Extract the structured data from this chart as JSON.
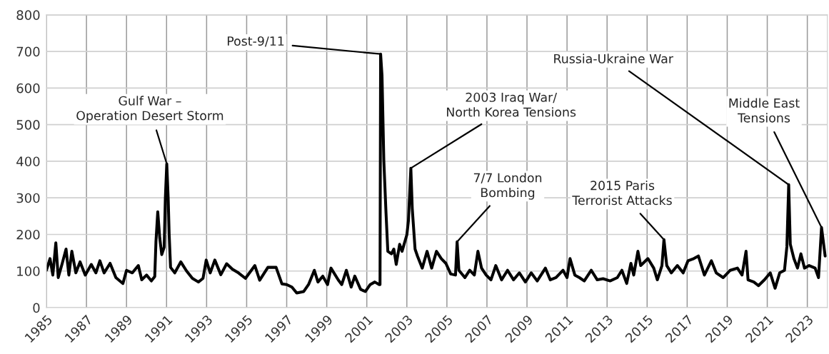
{
  "chart_data": {
    "type": "line",
    "x": [
      1985.0,
      1985.18,
      1985.32,
      1985.47,
      1985.59,
      1985.79,
      1985.98,
      1986.12,
      1986.27,
      1986.47,
      1986.68,
      1986.94,
      1987.24,
      1987.47,
      1987.67,
      1987.88,
      1988.18,
      1988.47,
      1988.82,
      1989.0,
      1989.29,
      1989.59,
      1989.76,
      1990.0,
      1990.24,
      1990.41,
      1990.47,
      1990.56,
      1990.66,
      1990.76,
      1990.88,
      1990.94,
      1991.01,
      1991.08,
      1991.13,
      1991.2,
      1991.41,
      1991.71,
      1992.0,
      1992.29,
      1992.59,
      1992.82,
      1992.98,
      1993.18,
      1993.41,
      1993.71,
      1994.0,
      1994.29,
      1994.59,
      1994.94,
      1995.41,
      1995.65,
      1996.06,
      1996.47,
      1996.76,
      1997.0,
      1997.26,
      1997.5,
      1997.85,
      1998.09,
      1998.38,
      1998.56,
      1998.8,
      1999.04,
      1999.21,
      1999.57,
      1999.75,
      1999.98,
      2000.22,
      2000.4,
      2000.69,
      2000.93,
      2001.17,
      2001.4,
      2001.62,
      2001.66,
      2001.69,
      2001.76,
      2001.85,
      2001.96,
      2002.05,
      2002.23,
      2002.35,
      2002.47,
      2002.64,
      2002.76,
      2003.0,
      2003.08,
      2003.2,
      2003.27,
      2003.41,
      2003.53,
      2003.77,
      2004.01,
      2004.24,
      2004.48,
      2004.72,
      2004.95,
      2005.19,
      2005.43,
      2005.51,
      2005.6,
      2005.9,
      2006.14,
      2006.37,
      2006.55,
      2006.73,
      2006.96,
      2007.2,
      2007.44,
      2007.73,
      2008.03,
      2008.33,
      2008.62,
      2008.92,
      2009.21,
      2009.51,
      2009.92,
      2010.16,
      2010.45,
      2010.8,
      2011.0,
      2011.15,
      2011.39,
      2011.62,
      2011.86,
      2012.21,
      2012.51,
      2012.8,
      2013.15,
      2013.51,
      2013.74,
      2013.98,
      2014.19,
      2014.33,
      2014.54,
      2014.68,
      2015.04,
      2015.33,
      2015.51,
      2015.74,
      2015.84,
      2015.98,
      2016.21,
      2016.51,
      2016.8,
      2017.04,
      2017.33,
      2017.56,
      2017.86,
      2018.21,
      2018.45,
      2018.8,
      2019.15,
      2019.51,
      2019.74,
      2019.94,
      2020.04,
      2020.33,
      2020.56,
      2020.86,
      2021.15,
      2021.39,
      2021.62,
      2021.86,
      2021.98,
      2022.07,
      2022.15,
      2022.33,
      2022.51,
      2022.68,
      2022.86,
      2023.09,
      2023.39,
      2023.56,
      2023.71,
      2023.86,
      2023.89
    ],
    "series": [
      {
        "color": "#000000",
        "values": [
          102,
          134,
          89,
          177,
          82,
          121,
          160,
          89,
          154,
          95,
          125,
          89,
          118,
          95,
          128,
          95,
          121,
          82,
          66,
          102,
          95,
          115,
          76,
          89,
          73,
          85,
          180,
          262,
          190,
          145,
          165,
          300,
          393,
          300,
          200,
          110,
          95,
          125,
          100,
          80,
          70,
          80,
          130,
          95,
          130,
          90,
          120,
          105,
          95,
          80,
          115,
          75,
          110,
          110,
          65,
          63,
          56,
          40,
          44,
          63,
          102,
          70,
          86,
          63,
          108,
          76,
          63,
          102,
          56,
          86,
          50,
          44,
          63,
          70,
          63,
          63,
          693,
          634,
          402,
          258,
          154,
          147,
          160,
          118,
          173,
          154,
          199,
          238,
          381,
          271,
          160,
          141,
          108,
          154,
          108,
          154,
          134,
          121,
          92,
          89,
          180,
          102,
          82,
          102,
          89,
          154,
          108,
          89,
          76,
          115,
          76,
          102,
          76,
          95,
          70,
          95,
          73,
          108,
          76,
          82,
          102,
          82,
          134,
          89,
          82,
          73,
          102,
          76,
          79,
          73,
          82,
          102,
          66,
          121,
          89,
          154,
          115,
          134,
          108,
          76,
          115,
          186,
          115,
          95,
          115,
          95,
          128,
          134,
          141,
          89,
          128,
          95,
          82,
          102,
          108,
          89,
          154,
          76,
          70,
          60,
          76,
          95,
          53,
          95,
          102,
          167,
          336,
          173,
          134,
          108,
          147,
          108,
          115,
          108,
          82,
          219,
          154,
          141
        ]
      }
    ],
    "xlim": [
      1985,
      2024
    ],
    "ylim": [
      0,
      800
    ],
    "xticks": [
      1985,
      1987,
      1989,
      1991,
      1993,
      1995,
      1997,
      1999,
      2001,
      2003,
      2005,
      2007,
      2009,
      2011,
      2013,
      2015,
      2017,
      2019,
      2021,
      2023
    ],
    "yticks": [
      0,
      100,
      200,
      300,
      400,
      500,
      600,
      700,
      800
    ],
    "grid": true,
    "legend": false,
    "marker": "none",
    "line_style": "solid",
    "annotations": [
      {
        "text": "Gulf War –\nOperation Desert Storm",
        "x": 1991.01,
        "y": 393
      },
      {
        "text": "Post-9/11",
        "x": 2001.69,
        "y": 693
      },
      {
        "text": "2003 Iraq War/\nNorth Korea Tensions",
        "x": 2003.2,
        "y": 381
      },
      {
        "text": "7/7 London\nBombing",
        "x": 2005.51,
        "y": 180
      },
      {
        "text": "2015 Paris\nTerrorist Attacks",
        "x": 2015.84,
        "y": 186
      },
      {
        "text": "Russia-Ukraine War",
        "x": 2022.07,
        "y": 336
      },
      {
        "text": "Middle East\nTensions",
        "x": 2023.71,
        "y": 219
      }
    ]
  }
}
